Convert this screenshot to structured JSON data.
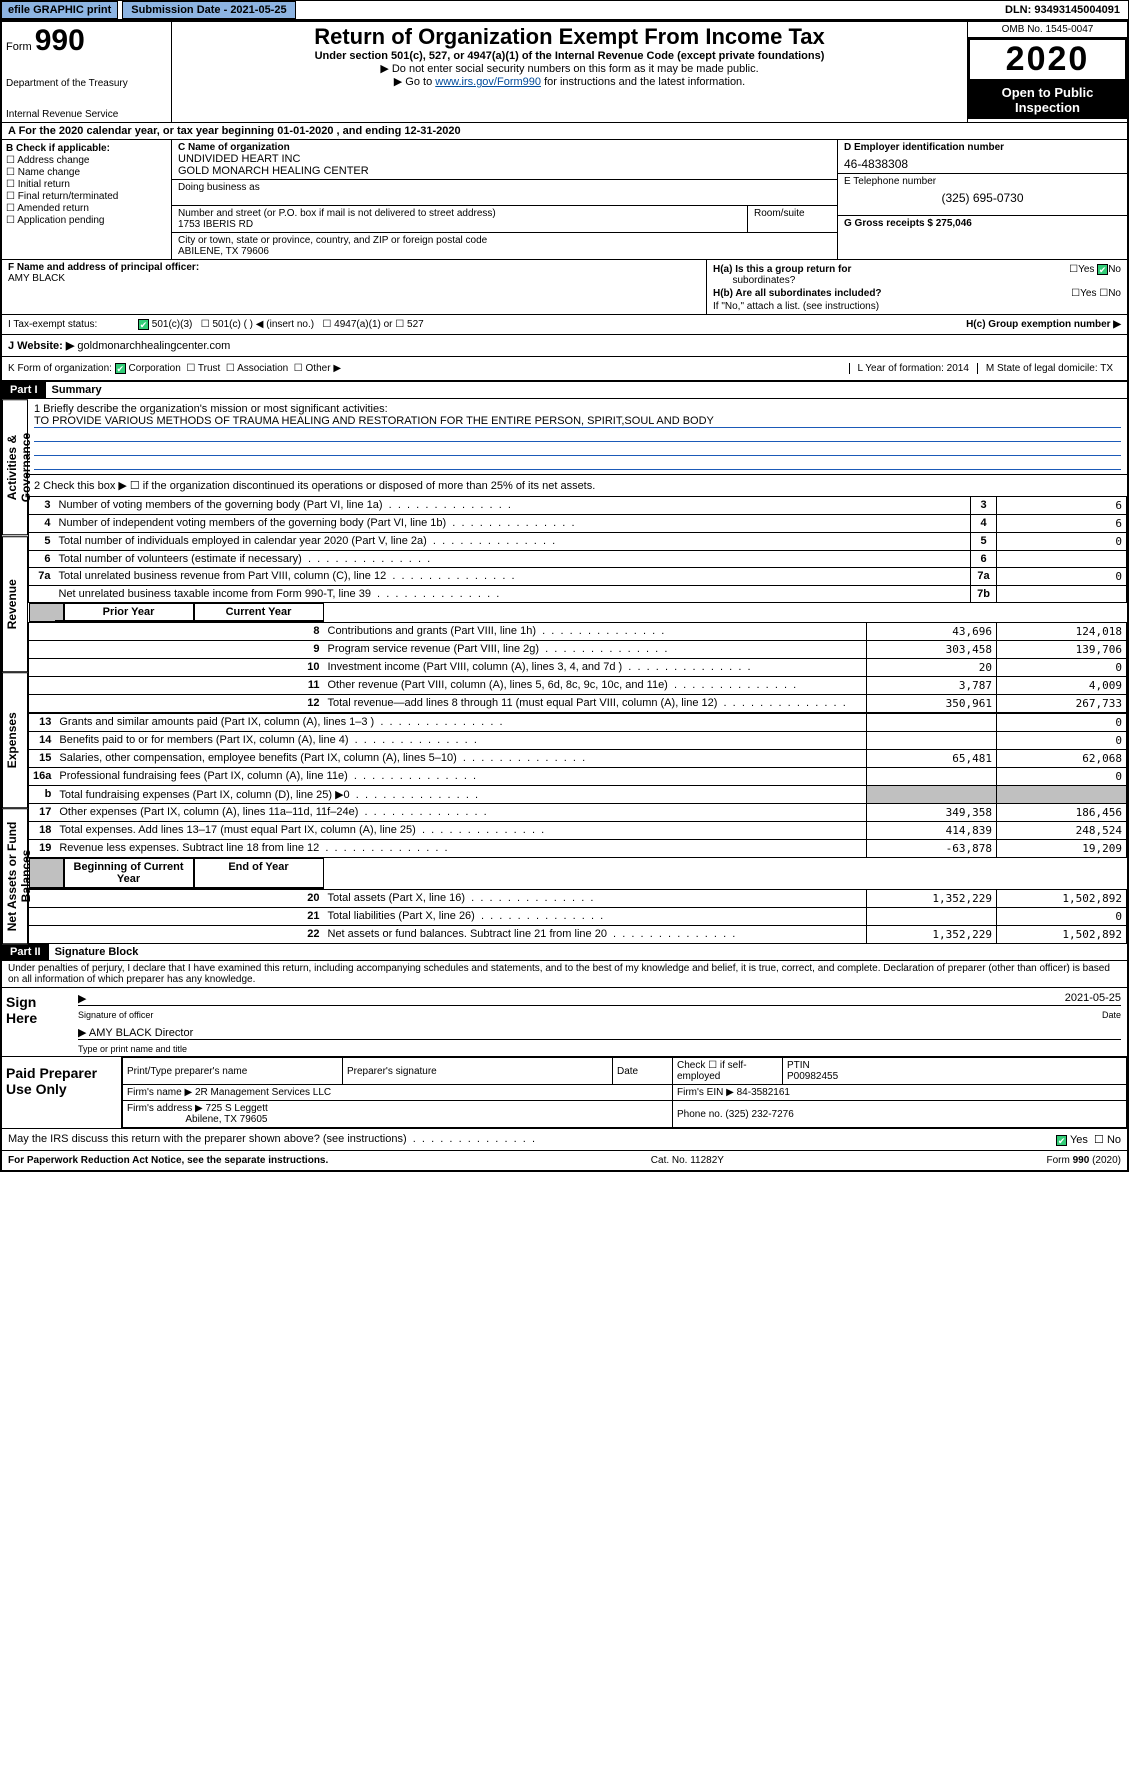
{
  "topbar": {
    "efile_label": "efile GRAPHIC print",
    "submission_label": "Submission Date - 2021-05-25",
    "dln": "DLN: 93493145004091"
  },
  "header": {
    "form_prefix": "Form",
    "form_number": "990",
    "dept": "Department of the Treasury",
    "irs": "Internal Revenue Service",
    "title": "Return of Organization Exempt From Income Tax",
    "subtitle": "Under section 501(c), 527, or 4947(a)(1) of the Internal Revenue Code (except private foundations)",
    "note1": "▶ Do not enter social security numbers on this form as it may be made public.",
    "note2_prefix": "▶ Go to ",
    "note2_link": "www.irs.gov/Form990",
    "note2_suffix": " for instructions and the latest information.",
    "omb": "OMB No. 1545-0047",
    "year": "2020",
    "open_public1": "Open to Public",
    "open_public2": "Inspection"
  },
  "tax_year_line": "A For the 2020 calendar year, or tax year beginning 01-01-2020    , and ending 12-31-2020",
  "section_b": {
    "label": "B Check if applicable:",
    "items": [
      "Address change",
      "Name change",
      "Initial return",
      "Final return/terminated",
      "Amended return",
      "Application pending"
    ]
  },
  "section_c": {
    "label": "C Name of organization",
    "name1": "UNDIVIDED HEART INC",
    "name2": "GOLD MONARCH HEALING CENTER",
    "dba_label": "Doing business as",
    "addr_label": "Number and street (or P.O. box if mail is not delivered to street address)",
    "addr": "1753 IBERIS RD",
    "room_label": "Room/suite",
    "city_label": "City or town, state or province, country, and ZIP or foreign postal code",
    "city": "ABILENE, TX  79606"
  },
  "section_d": {
    "label": "D Employer identification number",
    "ein": "46-4838308"
  },
  "section_e": {
    "label": "E Telephone number",
    "phone": "(325) 695-0730"
  },
  "section_g": {
    "label": "G Gross receipts $ 275,046"
  },
  "section_f": {
    "label": "F  Name and address of principal officer:",
    "name": "AMY BLACK"
  },
  "section_h": {
    "ha_label": "H(a)  Is this a group return for",
    "ha_sub": "subordinates?",
    "hb_label": "H(b)  Are all subordinates included?",
    "hb_note": "If \"No,\" attach a list. (see instructions)",
    "hc_label": "H(c)  Group exemption number ▶",
    "yes": "Yes",
    "no": "No"
  },
  "section_i": {
    "label": "I   Tax-exempt status:",
    "opt1": "501(c)(3)",
    "opt2": "501(c) (  ) ◀ (insert no.)",
    "opt3": "4947(a)(1) or",
    "opt4": "527"
  },
  "section_j": {
    "label": "J   Website: ▶",
    "val": "goldmonarchhealingcenter.com"
  },
  "section_k": {
    "label": "K Form of organization:",
    "corp": "Corporation",
    "trust": "Trust",
    "assoc": "Association",
    "other": "Other ▶",
    "l_label": "L Year of formation: 2014",
    "m_label": "M State of legal domicile: TX"
  },
  "part1": {
    "header": "Part I",
    "title": "Summary",
    "mission_label": "1  Briefly describe the organization's mission or most significant activities:",
    "mission": "TO PROVIDE VARIOUS METHODS OF TRAUMA HEALING AND RESTORATION FOR THE ENTIRE PERSON, SPIRIT,SOUL AND BODY",
    "line2": "2   Check this box ▶ ☐  if the organization discontinued its operations or disposed of more than 25% of its net assets.",
    "vlabels": {
      "a": "Activities & Governance",
      "b": "Revenue",
      "c": "Expenses",
      "d": "Net Assets or Fund Balances"
    },
    "rows_top": [
      {
        "n": "3",
        "label": "Number of voting members of the governing body (Part VI, line 1a)",
        "box": "3",
        "val": "6"
      },
      {
        "n": "4",
        "label": "Number of independent voting members of the governing body (Part VI, line 1b)",
        "box": "4",
        "val": "6"
      },
      {
        "n": "5",
        "label": "Total number of individuals employed in calendar year 2020 (Part V, line 2a)",
        "box": "5",
        "val": "0"
      },
      {
        "n": "6",
        "label": "Total number of volunteers (estimate if necessary)",
        "box": "6",
        "val": ""
      },
      {
        "n": "7a",
        "label": "Total unrelated business revenue from Part VIII, column (C), line 12",
        "box": "7a",
        "val": "0"
      },
      {
        "n": "",
        "label": "Net unrelated business taxable income from Form 990-T, line 39",
        "box": "7b",
        "val": ""
      }
    ],
    "prior_label": "Prior Year",
    "current_label": "Current Year",
    "rows_rev": [
      {
        "n": "8",
        "label": "Contributions and grants (Part VIII, line 1h)",
        "prior": "43,696",
        "curr": "124,018"
      },
      {
        "n": "9",
        "label": "Program service revenue (Part VIII, line 2g)",
        "prior": "303,458",
        "curr": "139,706"
      },
      {
        "n": "10",
        "label": "Investment income (Part VIII, column (A), lines 3, 4, and 7d )",
        "prior": "20",
        "curr": "0"
      },
      {
        "n": "11",
        "label": "Other revenue (Part VIII, column (A), lines 5, 6d, 8c, 9c, 10c, and 11e)",
        "prior": "3,787",
        "curr": "4,009"
      },
      {
        "n": "12",
        "label": "Total revenue—add lines 8 through 11 (must equal Part VIII, column (A), line 12)",
        "prior": "350,961",
        "curr": "267,733"
      }
    ],
    "rows_exp": [
      {
        "n": "13",
        "label": "Grants and similar amounts paid (Part IX, column (A), lines 1–3 )",
        "prior": "",
        "curr": "0"
      },
      {
        "n": "14",
        "label": "Benefits paid to or for members (Part IX, column (A), line 4)",
        "prior": "",
        "curr": "0"
      },
      {
        "n": "15",
        "label": "Salaries, other compensation, employee benefits (Part IX, column (A), lines 5–10)",
        "prior": "65,481",
        "curr": "62,068"
      },
      {
        "n": "16a",
        "label": "Professional fundraising fees (Part IX, column (A), line 11e)",
        "prior": "",
        "curr": "0"
      },
      {
        "n": "b",
        "label": "Total fundraising expenses (Part IX, column (D), line 25) ▶0",
        "prior": "shade",
        "curr": "shade"
      },
      {
        "n": "17",
        "label": "Other expenses (Part IX, column (A), lines 11a–11d, 11f–24e)",
        "prior": "349,358",
        "curr": "186,456"
      },
      {
        "n": "18",
        "label": "Total expenses. Add lines 13–17 (must equal Part IX, column (A), line 25)",
        "prior": "414,839",
        "curr": "248,524"
      },
      {
        "n": "19",
        "label": "Revenue less expenses. Subtract line 18 from line 12",
        "prior": "-63,878",
        "curr": "19,209"
      }
    ],
    "boy_label": "Beginning of Current Year",
    "eoy_label": "End of Year",
    "rows_net": [
      {
        "n": "20",
        "label": "Total assets (Part X, line 16)",
        "prior": "1,352,229",
        "curr": "1,502,892"
      },
      {
        "n": "21",
        "label": "Total liabilities (Part X, line 26)",
        "prior": "",
        "curr": "0"
      },
      {
        "n": "22",
        "label": "Net assets or fund balances. Subtract line 21 from line 20",
        "prior": "1,352,229",
        "curr": "1,502,892"
      }
    ]
  },
  "part2": {
    "header": "Part II",
    "title": "Signature Block",
    "penalty": "Under penalties of perjury, I declare that I have examined this return, including accompanying schedules and statements, and to the best of my knowledge and belief, it is true, correct, and complete. Declaration of preparer (other than officer) is based on all information of which preparer has any knowledge.",
    "sign_here": "Sign Here",
    "sig_officer": "Signature of officer",
    "sig_date_label": "Date",
    "sig_date": "2021-05-25",
    "sig_name": "AMY BLACK  Director",
    "sig_type_label": "Type or print name and title",
    "paid_preparer": "Paid Preparer Use Only",
    "prep_name_label": "Print/Type preparer's name",
    "prep_sig_label": "Preparer's signature",
    "prep_date_label": "Date",
    "prep_check_label": "Check ☐ if self-employed",
    "ptin_label": "PTIN",
    "ptin": "P00982455",
    "firm_name_label": "Firm's name    ▶",
    "firm_name": "2R Management Services LLC",
    "firm_ein_label": "Firm's EIN ▶",
    "firm_ein": "84-3582161",
    "firm_addr_label": "Firm's address ▶",
    "firm_addr1": "725 S Leggett",
    "firm_addr2": "Abilene, TX  79605",
    "firm_phone_label": "Phone no.",
    "firm_phone": "(325) 232-7276",
    "discuss": "May the IRS discuss this return with the preparer shown above? (see instructions)",
    "yes": "Yes",
    "no": "No"
  },
  "footer": {
    "paperwork": "For Paperwork Reduction Act Notice, see the separate instructions.",
    "cat": "Cat. No. 11282Y",
    "form": "Form 990 (2020)"
  }
}
